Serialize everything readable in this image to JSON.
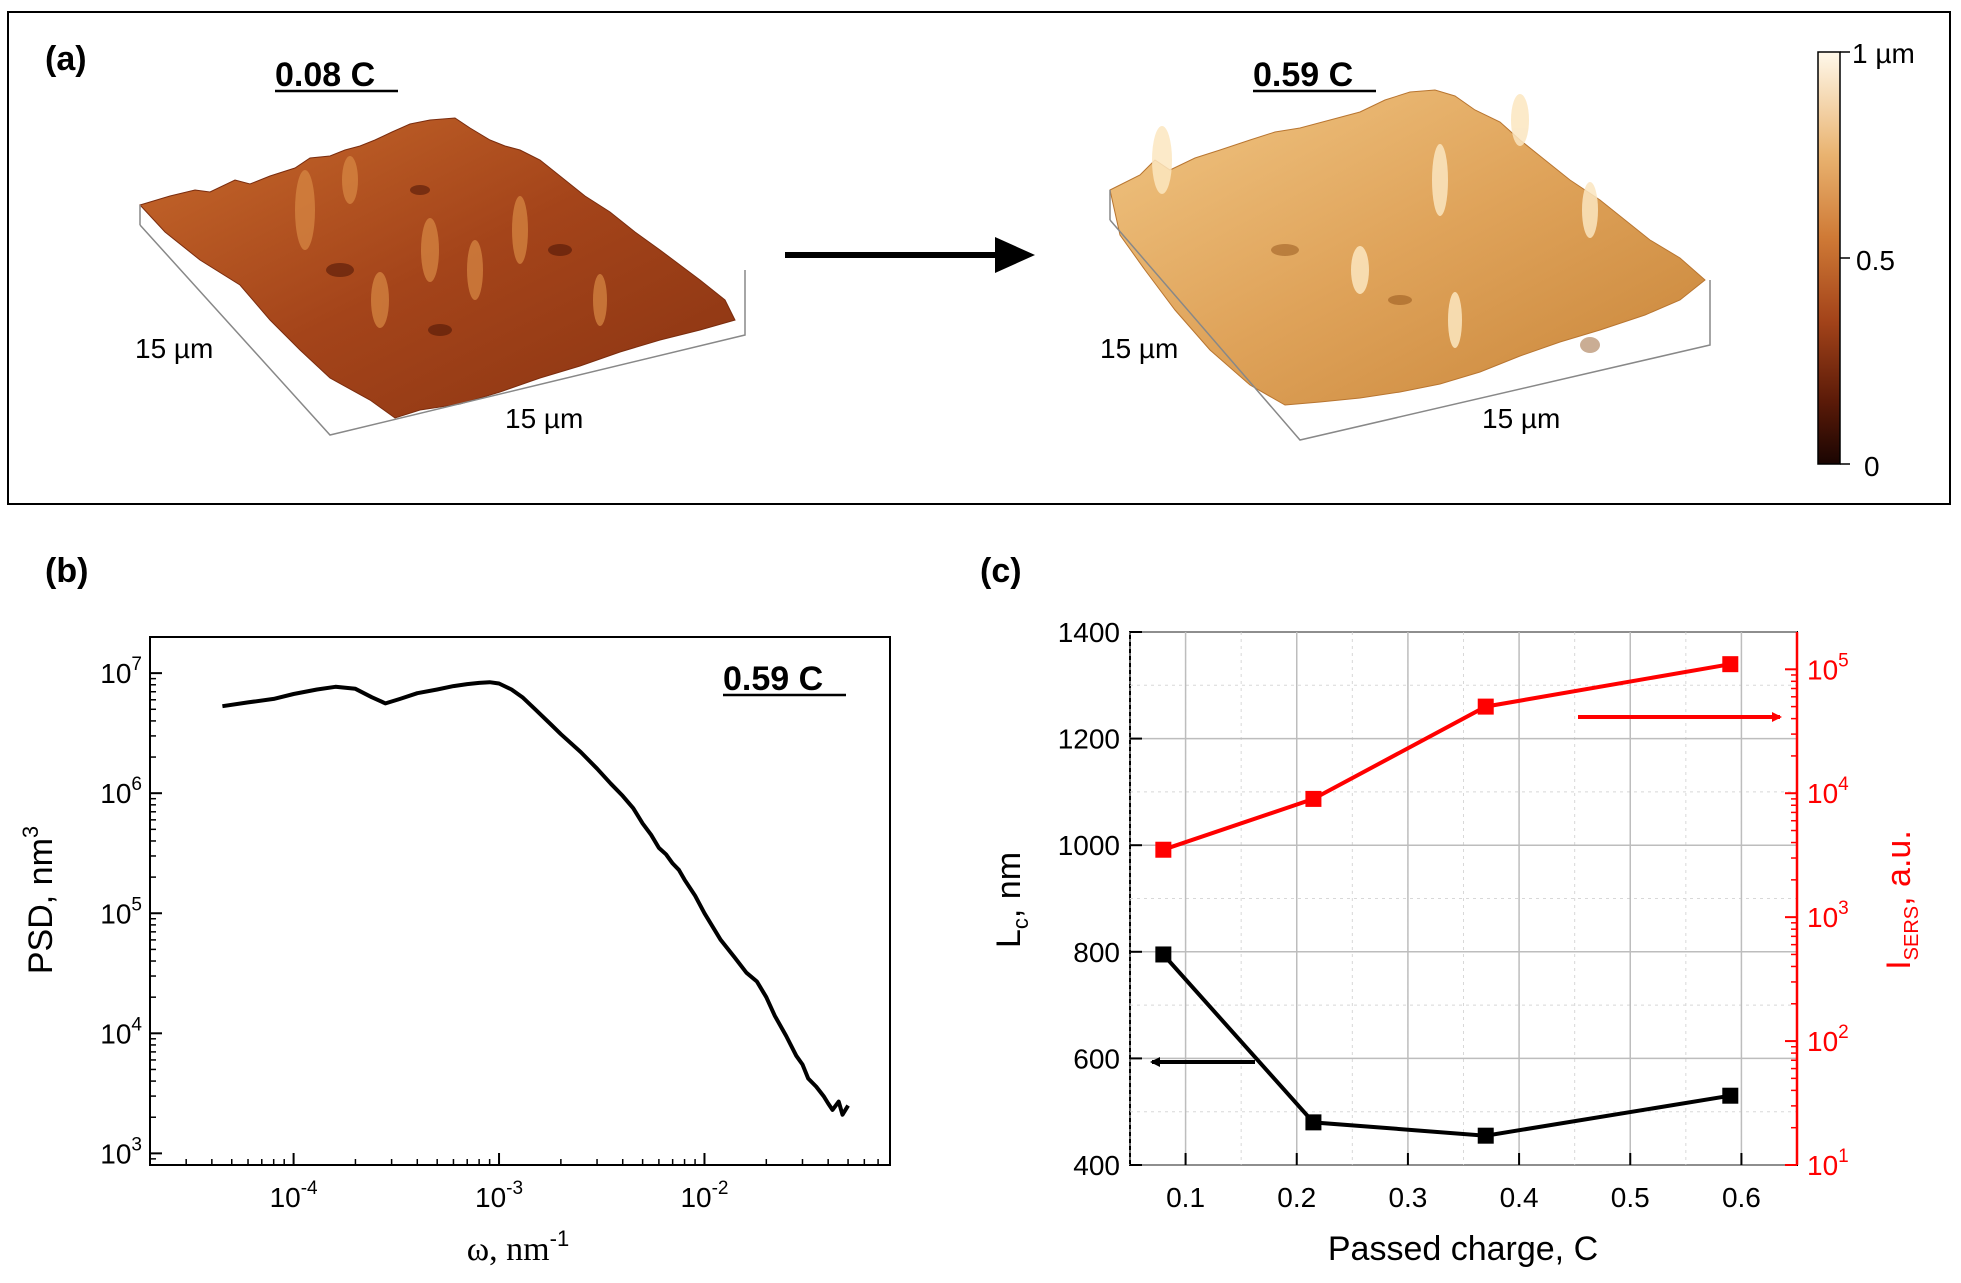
{
  "panel_a": {
    "label": "(a)",
    "left_sample": {
      "title": "0.08 C",
      "axis_x": "15 µm",
      "axis_y": "15 µm"
    },
    "right_sample": {
      "title": "0.59 C",
      "axis_x": "15 µm",
      "axis_y": "15 µm"
    },
    "colorbar": {
      "top": "1 µm",
      "mid": "0.5",
      "bottom": "0"
    },
    "colors": {
      "dark": "#2a0a04",
      "mid": "#a8441c",
      "light": "#fff6e6"
    }
  },
  "chart_data": [
    {
      "id": "b",
      "label": "(b)",
      "type": "line",
      "annotation": "0.59 C",
      "xlabel": "ω, nm",
      "xlabel_sup": "-1",
      "ylabel": "PSD, nm",
      "ylabel_sup": "3",
      "xscale": "log",
      "yscale": "log",
      "xlim": [
        2e-05,
        0.08
      ],
      "ylim": [
        800,
        20000000.0
      ],
      "x_ticks": [
        {
          "base": "10",
          "exp": "-4",
          "value": 0.0001
        },
        {
          "base": "10",
          "exp": "-3",
          "value": 0.001
        },
        {
          "base": "10",
          "exp": "-2",
          "value": 0.01
        }
      ],
      "y_ticks": [
        {
          "base": "10",
          "exp": "3",
          "value": 1000
        },
        {
          "base": "10",
          "exp": "4",
          "value": 10000
        },
        {
          "base": "10",
          "exp": "5",
          "value": 100000
        },
        {
          "base": "10",
          "exp": "6",
          "value": 1000000
        },
        {
          "base": "10",
          "exp": "7",
          "value": 10000000
        }
      ],
      "grid": false,
      "series": [
        {
          "color": "#000000",
          "x": [
            4.5e-05,
            6e-05,
            8e-05,
            0.0001,
            0.00013,
            0.00016,
            0.0002,
            0.00024,
            0.00028,
            0.00033,
            0.0004,
            0.0005,
            0.0006,
            0.0007,
            0.0008,
            0.0009,
            0.001,
            0.00115,
            0.0013,
            0.0015,
            0.0018,
            0.002,
            0.0025,
            0.003,
            0.0035,
            0.004,
            0.0045,
            0.005,
            0.0055,
            0.006,
            0.0065,
            0.007,
            0.0075,
            0.008,
            0.009,
            0.01,
            0.012,
            0.014,
            0.016,
            0.018,
            0.02,
            0.022,
            0.025,
            0.028,
            0.03,
            0.032,
            0.035,
            0.038,
            0.04,
            0.042,
            0.045,
            0.047,
            0.05
          ],
          "y": [
            5300000,
            5700000,
            6100000,
            6700000,
            7300000,
            7700000,
            7400000,
            6300000,
            5600000,
            6100000,
            6800000,
            7300000,
            7800000,
            8100000,
            8300000,
            8400000,
            8200000,
            7300000,
            6300000,
            5000000,
            3700000,
            3100000,
            2200000,
            1600000,
            1200000,
            950000,
            750000,
            560000,
            450000,
            350000,
            310000,
            260000,
            230000,
            190000,
            140000,
            100000,
            60000,
            43000,
            32000,
            27000,
            20000,
            14000,
            9500,
            6500,
            5500,
            4200,
            3600,
            3000,
            2600,
            2300,
            2700,
            2100,
            2500
          ]
        }
      ]
    },
    {
      "id": "c",
      "label": "(c)",
      "type": "line",
      "xlabel": "Passed charge, C",
      "xlim": [
        0.05,
        0.65
      ],
      "x_ticks": [
        "0.1",
        "0.2",
        "0.3",
        "0.4",
        "0.5",
        "0.6"
      ],
      "grid": true,
      "y_left": {
        "label": "L",
        "label_sub": "c",
        "label_rest": ", nm",
        "lim": [
          400,
          1400
        ],
        "ticks": [
          "400",
          "600",
          "800",
          "1000",
          "1200",
          "1400"
        ],
        "color": "#000000"
      },
      "y_right": {
        "label": "I",
        "label_sub": "SERS",
        "label_rest": ", a.u.",
        "scale": "log",
        "lim": [
          10,
          200000
        ],
        "ticks": [
          {
            "base": "10",
            "exp": "1",
            "value": 10
          },
          {
            "base": "10",
            "exp": "2",
            "value": 100
          },
          {
            "base": "10",
            "exp": "3",
            "value": 1000
          },
          {
            "base": "10",
            "exp": "4",
            "value": 10000
          },
          {
            "base": "10",
            "exp": "5",
            "value": 100000
          }
        ],
        "color": "#ff0000"
      },
      "series": [
        {
          "axis": "left",
          "color": "#000000",
          "marker": "square",
          "x": [
            0.08,
            0.215,
            0.37,
            0.59
          ],
          "y": [
            795,
            480,
            455,
            530
          ]
        },
        {
          "axis": "right",
          "color": "#ff0000",
          "marker": "square",
          "x": [
            0.08,
            0.215,
            0.37,
            0.59
          ],
          "y": [
            3500,
            9000,
            50000,
            110000
          ]
        }
      ],
      "arrows": [
        {
          "axis": "left",
          "direction": "left",
          "color": "#000000"
        },
        {
          "axis": "right",
          "direction": "right",
          "color": "#ff0000"
        }
      ]
    }
  ]
}
